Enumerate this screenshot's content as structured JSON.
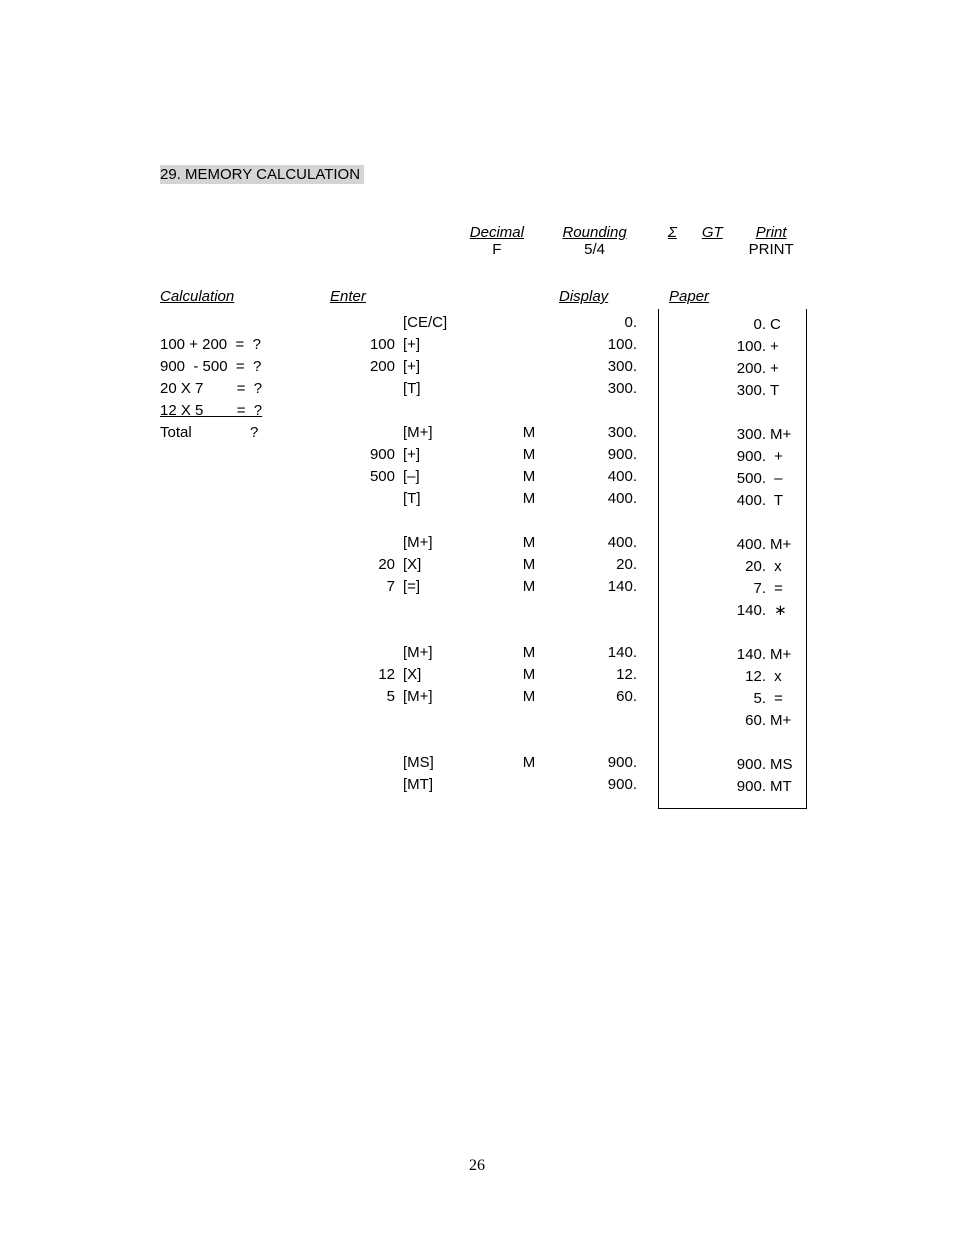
{
  "title": "29. MEMORY CALCULATION",
  "settings": {
    "decimal": {
      "label": "Decimal",
      "value": "F"
    },
    "rounding": {
      "label": "Rounding",
      "value": "5/4"
    },
    "sigma": {
      "label": "Σ",
      "value": ""
    },
    "gt": {
      "label": "GT",
      "value": ""
    },
    "print": {
      "label": "Print",
      "value": "PRINT"
    }
  },
  "headers": {
    "calculation": "Calculation",
    "enter": "Enter",
    "display": "Display",
    "paper": "Paper"
  },
  "rows": [
    {
      "calc": "",
      "enter": "",
      "key": "[CE/C]",
      "mind": "",
      "disp": "0."
    },
    {
      "calc": "100 + 200  =  ?",
      "enter": "100",
      "key": "[+]",
      "mind": "",
      "disp": "100."
    },
    {
      "calc": "900  - 500  =  ?",
      "enter": "200",
      "key": "[+]",
      "mind": "",
      "disp": "300."
    },
    {
      "calc": "20 X 7        =  ?",
      "enter": "",
      "key": "[T]",
      "mind": "",
      "disp": "300."
    },
    {
      "calc": "12 X 5        =  ?",
      "enter": "",
      "key": "",
      "mind": "",
      "disp": "",
      "calc_underline": true
    },
    {
      "calc": "Total              ?",
      "enter": "",
      "key": "[M+]",
      "mind": "M",
      "disp": "300."
    },
    {
      "calc": "",
      "enter": "900",
      "key": "[+]",
      "mind": "M",
      "disp": "900."
    },
    {
      "calc": "",
      "enter": "500",
      "key": "[–]",
      "mind": "M",
      "disp": "400."
    },
    {
      "calc": "",
      "enter": "",
      "key": "[T]",
      "mind": "M",
      "disp": "400."
    },
    {
      "gap": true
    },
    {
      "calc": "",
      "enter": "",
      "key": "[M+]",
      "mind": "M",
      "disp": "400."
    },
    {
      "calc": "",
      "enter": "20",
      "key": "[X]",
      "mind": "M",
      "disp": "20."
    },
    {
      "calc": "",
      "enter": "7",
      "key": "[=]",
      "mind": "M",
      "disp": "140."
    },
    {
      "gap": true
    },
    {
      "gap": true
    },
    {
      "calc": "",
      "enter": "",
      "key": "[M+]",
      "mind": "M",
      "disp": "140."
    },
    {
      "calc": "",
      "enter": "12",
      "key": "[X]",
      "mind": "M",
      "disp": "12."
    },
    {
      "calc": "",
      "enter": "5",
      "key": "[M+]",
      "mind": "M",
      "disp": "60."
    },
    {
      "gap": true
    },
    {
      "gap": true
    },
    {
      "calc": "",
      "enter": "",
      "key": "[MS]",
      "mind": "M",
      "disp": "900."
    },
    {
      "calc": "",
      "enter": "",
      "key": "[MT]",
      "mind": "",
      "disp": "900."
    }
  ],
  "paper": [
    {
      "v": "0.",
      "s": "C"
    },
    {
      "v": "100.",
      "s": "+"
    },
    {
      "v": "200.",
      "s": "+"
    },
    {
      "v": "300.",
      "s": "T"
    },
    {
      "gap": true
    },
    {
      "v": "300.",
      "s": "M+"
    },
    {
      "v": "900.",
      "s": " +"
    },
    {
      "v": "500.",
      "s": " –"
    },
    {
      "v": "400.",
      "s": " T"
    },
    {
      "gap": true
    },
    {
      "v": "400.",
      "s": "M+"
    },
    {
      "v": "20.",
      "s": " x"
    },
    {
      "v": "7.",
      "s": " ="
    },
    {
      "v": "140.",
      "s": " ∗"
    },
    {
      "gap": true
    },
    {
      "v": "140.",
      "s": "M+"
    },
    {
      "v": "12.",
      "s": " x"
    },
    {
      "v": "5.",
      "s": " ="
    },
    {
      "v": "60.",
      "s": "M+"
    },
    {
      "gap": true
    },
    {
      "v": "900.",
      "s": "MS"
    },
    {
      "v": "900.",
      "s": "MT"
    }
  ],
  "page_number": "26"
}
